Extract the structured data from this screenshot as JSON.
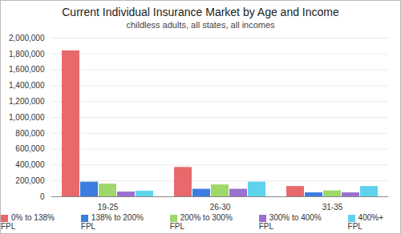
{
  "chart_data": {
    "type": "bar",
    "title": "Current Individual Insurance Market by Age and Income",
    "subtitle": "childless adults, all states, all incomes",
    "categories": [
      "19-25",
      "26-30",
      "31-35"
    ],
    "series": [
      {
        "name": "0% to 138% FPL",
        "color": "#e8696b",
        "values": [
          1840000,
          370000,
          130000
        ]
      },
      {
        "name": "138% to 200% FPL",
        "color": "#3b7de0",
        "values": [
          185000,
          95000,
          50000
        ]
      },
      {
        "name": "200% to 300% FPL",
        "color": "#9ed86a",
        "values": [
          160000,
          150000,
          75000
        ]
      },
      {
        "name": "300% to 400% FPL",
        "color": "#9b6fd0",
        "values": [
          60000,
          95000,
          50000
        ]
      },
      {
        "name": "400%+ FPL",
        "color": "#5fd3ee",
        "values": [
          70000,
          185000,
          130000
        ]
      }
    ],
    "ylim": [
      0,
      2000000
    ],
    "yticks": [
      0,
      {
        "value": 200000,
        "label": "200,000"
      },
      {
        "value": 400000,
        "label": "400,000"
      },
      {
        "value": 600000,
        "label": "600,000"
      },
      {
        "value": 800000,
        "label": "800,000"
      },
      {
        "value": 1000000,
        "label": "1,000,000"
      },
      {
        "value": 1200000,
        "label": "1,200,000"
      },
      {
        "value": 1400000,
        "label": "1,400,000"
      },
      {
        "value": 1600000,
        "label": "1,600,000"
      },
      {
        "value": 1800000,
        "label": "1,800,000"
      },
      {
        "value": 2000000,
        "label": "2,000,000"
      }
    ],
    "grid": true,
    "legend": "bottom"
  }
}
